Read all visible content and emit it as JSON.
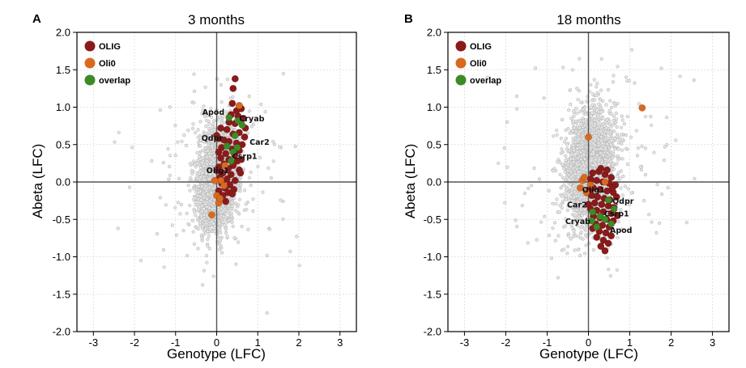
{
  "colors": {
    "olig": "#8b1a1a",
    "oli0": "#d9691f",
    "overlap": "#3e8a26",
    "background_points": "#b8b8b8",
    "grid": "#dcdcdc",
    "zero_line": "#555555",
    "frame": "#000000"
  },
  "chart_data": [
    {
      "type": "scatter",
      "panel_letter": "A",
      "title": "3 months",
      "xlabel": "Genotype (LFC)",
      "ylabel": "Abeta (LFC)",
      "xlim": [
        -3.4,
        3.4
      ],
      "ylim": [
        -2.0,
        2.0
      ],
      "xticks": [
        -3,
        -2,
        -1,
        0,
        1,
        2,
        3
      ],
      "xtick_labels": [
        "-3",
        "-2",
        "-1",
        "0",
        "1",
        "2",
        "3"
      ],
      "yticks": [
        -2.0,
        -1.5,
        -1.0,
        -0.5,
        0.0,
        0.5,
        1.0,
        1.5,
        2.0
      ],
      "ytick_labels": [
        "-2.0",
        "-1.5",
        "-1.0",
        "-0.5",
        "0.0",
        "0.5",
        "1.0",
        "1.5",
        "2.0"
      ],
      "grid": true,
      "legend_position": "top-left",
      "legend": [
        {
          "key": "olig",
          "label": "OLIG"
        },
        {
          "key": "oli0",
          "label": "Oli0"
        },
        {
          "key": "overlap",
          "label": "overlap"
        }
      ],
      "background": {
        "description": "all genes (gray)",
        "center": [
          0.0,
          0.05
        ],
        "sd": [
          0.22,
          0.32
        ],
        "tail_sd": [
          0.9,
          0.6
        ]
      },
      "series": [
        {
          "name": "OLIG",
          "key": "olig",
          "points": [
            [
              0.45,
              1.38
            ],
            [
              0.4,
              1.25
            ],
            [
              0.55,
              1.02
            ],
            [
              0.38,
              1.05
            ],
            [
              0.6,
              0.98
            ],
            [
              0.35,
              0.9
            ],
            [
              0.52,
              0.88
            ],
            [
              0.65,
              0.85
            ],
            [
              0.3,
              0.8
            ],
            [
              0.45,
              0.78
            ],
            [
              0.7,
              0.72
            ],
            [
              0.1,
              0.72
            ],
            [
              0.25,
              0.7
            ],
            [
              0.55,
              0.66
            ],
            [
              0.4,
              0.64
            ],
            [
              0.05,
              0.58
            ],
            [
              0.18,
              0.56
            ],
            [
              0.3,
              0.54
            ],
            [
              0.48,
              0.52
            ],
            [
              0.62,
              0.5
            ],
            [
              0.12,
              0.46
            ],
            [
              0.38,
              0.44
            ],
            [
              0.55,
              0.42
            ],
            [
              0.05,
              0.4
            ],
            [
              0.22,
              0.38
            ],
            [
              0.44,
              0.36
            ],
            [
              0.1,
              0.32
            ],
            [
              0.3,
              0.3
            ],
            [
              0.5,
              0.28
            ],
            [
              0.18,
              0.24
            ],
            [
              0.4,
              0.22
            ],
            [
              0.05,
              0.2
            ],
            [
              0.28,
              0.18
            ],
            [
              0.55,
              0.16
            ],
            [
              0.15,
              0.12
            ],
            [
              0.35,
              0.1
            ],
            [
              0.08,
              0.06
            ],
            [
              0.25,
              0.04
            ],
            [
              0.45,
              0.02
            ],
            [
              0.12,
              -0.02
            ],
            [
              0.32,
              -0.04
            ],
            [
              0.2,
              -0.08
            ],
            [
              0.42,
              -0.1
            ],
            [
              0.05,
              -0.12
            ],
            [
              0.28,
              -0.14
            ],
            [
              0.15,
              -0.18
            ],
            [
              0.38,
              -0.16
            ],
            [
              0.22,
              -0.26
            ],
            [
              0.0,
              0.62
            ],
            [
              0.6,
              0.3
            ],
            [
              0.68,
              0.6
            ],
            [
              0.02,
              0.15
            ],
            [
              0.48,
              0.95
            ],
            [
              0.58,
              0.12
            ]
          ]
        },
        {
          "name": "Oli0",
          "key": "oli0",
          "points": [
            [
              0.55,
              1.02
            ],
            [
              -0.12,
              -0.44
            ],
            [
              0.0,
              -0.18
            ],
            [
              0.05,
              -0.28
            ],
            [
              0.1,
              0.02
            ],
            [
              0.18,
              -0.05
            ],
            [
              -0.05,
              0.02
            ],
            [
              0.2,
              0.22
            ],
            [
              0.08,
              -0.22
            ]
          ]
        },
        {
          "name": "overlap",
          "key": "overlap",
          "points": [
            [
              0.3,
              0.86
            ],
            [
              0.52,
              0.82
            ],
            [
              0.62,
              0.76
            ],
            [
              0.45,
              0.62
            ],
            [
              0.25,
              0.48
            ],
            [
              0.5,
              0.46
            ],
            [
              0.4,
              0.4
            ],
            [
              0.35,
              0.28
            ]
          ]
        }
      ],
      "annotations": [
        {
          "text": "Apod",
          "x": -0.35,
          "y": 0.9
        },
        {
          "text": "Cryab",
          "x": 0.55,
          "y": 0.81
        },
        {
          "text": "Qdpr",
          "x": -0.37,
          "y": 0.55
        },
        {
          "text": "Car2",
          "x": 0.8,
          "y": 0.5
        },
        {
          "text": "Csrp1",
          "x": 0.38,
          "y": 0.31
        },
        {
          "text": "Olig1",
          "x": -0.25,
          "y": 0.12
        }
      ]
    },
    {
      "type": "scatter",
      "panel_letter": "B",
      "title": "18 months",
      "xlabel": "Genotype (LFC)",
      "ylabel": "Abeta (LFC)",
      "xlim": [
        -3.4,
        3.4
      ],
      "ylim": [
        -2.0,
        2.0
      ],
      "xticks": [
        -3,
        -2,
        -1,
        0,
        1,
        2,
        3
      ],
      "xtick_labels": [
        "-3",
        "-2",
        "-1",
        "0",
        "1",
        "2",
        "3"
      ],
      "yticks": [
        -2.0,
        -1.5,
        -1.0,
        -0.5,
        0.0,
        0.5,
        1.0,
        1.5,
        2.0
      ],
      "ytick_labels": [
        "-2.0",
        "-1.5",
        "-1.0",
        "-0.5",
        "0.0",
        "0.5",
        "1.0",
        "1.5",
        "2.0"
      ],
      "grid": true,
      "legend_position": "top-left",
      "legend": [
        {
          "key": "olig",
          "label": "OLIG"
        },
        {
          "key": "oli0",
          "label": "Oli0"
        },
        {
          "key": "overlap",
          "label": "overlap"
        }
      ],
      "background": {
        "description": "all genes (gray)",
        "center": [
          0.05,
          0.2
        ],
        "sd": [
          0.28,
          0.38
        ],
        "tail_sd": [
          1.0,
          0.7
        ]
      },
      "series": [
        {
          "name": "OLIG",
          "key": "olig",
          "points": [
            [
              0.1,
              0.12
            ],
            [
              0.25,
              0.14
            ],
            [
              0.4,
              0.1
            ],
            [
              0.55,
              0.06
            ],
            [
              0.05,
              0.04
            ],
            [
              0.2,
              0.02
            ],
            [
              0.35,
              0.0
            ],
            [
              0.5,
              -0.02
            ],
            [
              0.65,
              -0.04
            ],
            [
              0.12,
              -0.08
            ],
            [
              0.28,
              -0.1
            ],
            [
              0.45,
              -0.12
            ],
            [
              0.6,
              -0.14
            ],
            [
              0.08,
              -0.18
            ],
            [
              0.22,
              -0.2
            ],
            [
              0.38,
              -0.22
            ],
            [
              0.52,
              -0.24
            ],
            [
              0.15,
              -0.28
            ],
            [
              0.32,
              -0.3
            ],
            [
              0.48,
              -0.32
            ],
            [
              0.62,
              -0.34
            ],
            [
              0.05,
              -0.36
            ],
            [
              0.2,
              -0.38
            ],
            [
              0.36,
              -0.4
            ],
            [
              0.55,
              -0.42
            ],
            [
              0.12,
              -0.46
            ],
            [
              0.28,
              -0.48
            ],
            [
              0.44,
              -0.5
            ],
            [
              0.6,
              -0.52
            ],
            [
              0.18,
              -0.56
            ],
            [
              0.34,
              -0.58
            ],
            [
              0.5,
              -0.6
            ],
            [
              0.1,
              -0.62
            ],
            [
              0.26,
              -0.66
            ],
            [
              0.42,
              -0.68
            ],
            [
              0.55,
              -0.72
            ],
            [
              0.2,
              -0.74
            ],
            [
              0.36,
              -0.78
            ],
            [
              0.48,
              -0.82
            ],
            [
              0.3,
              -0.86
            ],
            [
              0.4,
              -0.92
            ],
            [
              0.02,
              -0.1
            ],
            [
              0.68,
              -0.2
            ],
            [
              0.0,
              -0.3
            ],
            [
              0.7,
              -0.45
            ],
            [
              0.45,
              0.16
            ],
            [
              0.3,
              0.18
            ],
            [
              0.58,
              -0.08
            ]
          ]
        },
        {
          "name": "Oli0",
          "key": "oli0",
          "points": [
            [
              1.3,
              0.99
            ],
            [
              0.0,
              0.6
            ],
            [
              -0.15,
              0.02
            ],
            [
              -0.2,
              -0.08
            ],
            [
              -0.05,
              -0.14
            ],
            [
              0.05,
              -0.04
            ],
            [
              0.4,
              0.0
            ],
            [
              -0.1,
              0.06
            ]
          ]
        },
        {
          "name": "overlap",
          "key": "overlap",
          "points": [
            [
              0.48,
              -0.24
            ],
            [
              0.62,
              -0.36
            ],
            [
              0.1,
              -0.4
            ],
            [
              0.28,
              -0.46
            ],
            [
              0.4,
              -0.5
            ],
            [
              0.08,
              -0.52
            ],
            [
              0.55,
              -0.56
            ],
            [
              0.2,
              -0.6
            ]
          ]
        }
      ],
      "annotations": [
        {
          "text": "Olig1",
          "x": -0.15,
          "y": -0.14
        },
        {
          "text": "Qdpr",
          "x": 0.58,
          "y": -0.29
        },
        {
          "text": "Car2",
          "x": -0.52,
          "y": -0.34
        },
        {
          "text": "Csrp1",
          "x": 0.38,
          "y": -0.46
        },
        {
          "text": "Cryab",
          "x": -0.56,
          "y": -0.56
        },
        {
          "text": "Apod",
          "x": 0.52,
          "y": -0.68
        }
      ]
    }
  ]
}
